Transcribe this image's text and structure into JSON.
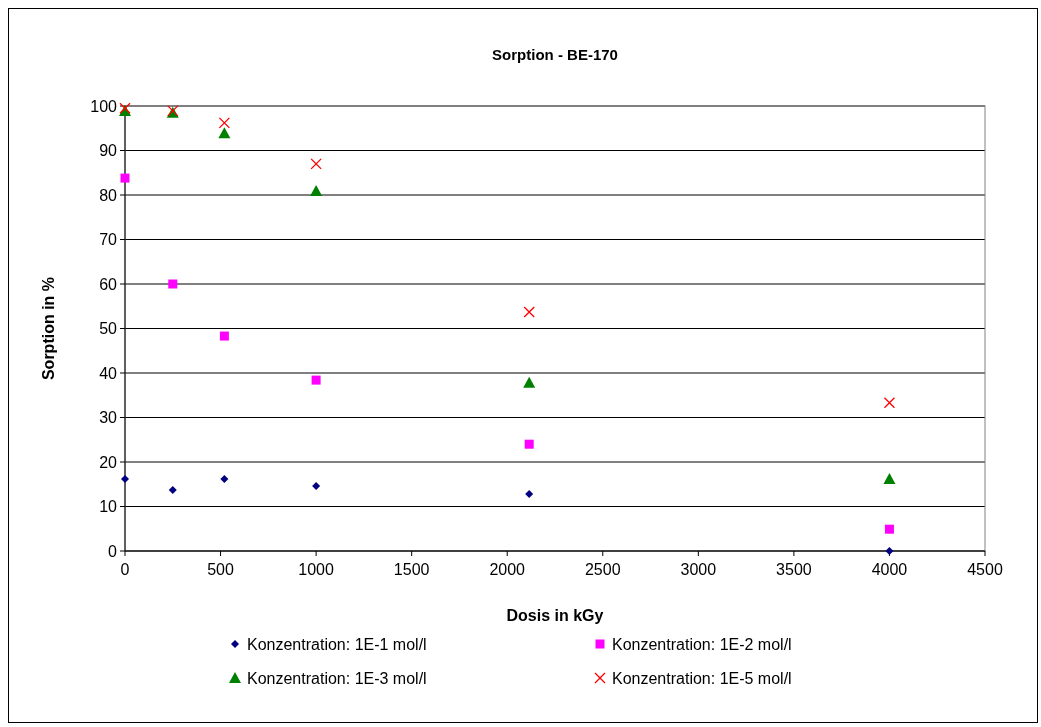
{
  "chart_data": {
    "type": "scatter",
    "title": "Sorption - BE-170",
    "xlabel": "Dosis in kGy",
    "ylabel": "Sorption in %",
    "x": [
      0,
      250,
      520,
      1000,
      2115,
      4000
    ],
    "series": [
      {
        "name": "Konzentration: 1E-1 mol/l",
        "color": "#000080",
        "marker": "diamond",
        "values": [
          16.2,
          13.7,
          16.2,
          14.6,
          12.8,
          0
        ]
      },
      {
        "name": "Konzentration: 1E-2 mol/l",
        "color": "#ff00ff",
        "marker": "square",
        "values": [
          83.8,
          60,
          48.3,
          38.4,
          24,
          4.9
        ]
      },
      {
        "name": "Konzentration: 1E-3 mol/l",
        "color": "#008000",
        "marker": "triangle",
        "values": [
          98.9,
          98.5,
          93.9,
          80.9,
          37.8,
          16.2
        ]
      },
      {
        "name": "Konzentration: 1E-5 mol/l",
        "color": "#ff0000",
        "marker": "cross",
        "values": [
          99.5,
          98.9,
          96.2,
          87,
          53.7,
          33.3
        ]
      }
    ],
    "xlim": [
      0,
      4500
    ],
    "xticks": [
      0,
      500,
      1000,
      1500,
      2000,
      2500,
      3000,
      3500,
      4000,
      4500
    ],
    "ylim": [
      0,
      100
    ],
    "yticks": [
      0,
      10,
      20,
      30,
      40,
      50,
      60,
      70,
      80,
      90,
      100
    ],
    "grid": "y",
    "legend": "bottom"
  }
}
